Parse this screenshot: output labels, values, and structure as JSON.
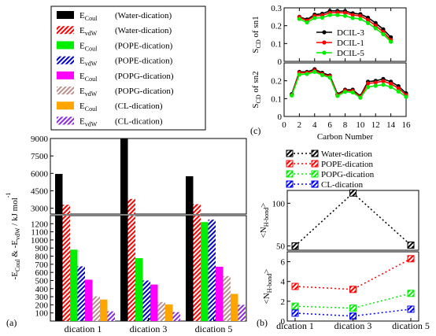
{
  "panel_labels": {
    "a": "(a)",
    "b": "(b)",
    "c": "(c)"
  },
  "legend_a": [
    {
      "sym": "E",
      "sub": "Coul",
      "desc": "(Water-dication)",
      "color": "#000000",
      "pattern": "solid"
    },
    {
      "sym": "E",
      "sub": "vdW",
      "desc": "(Water-dication)",
      "color": "#ff0000",
      "pattern": "hatch"
    },
    {
      "sym": "E",
      "sub": "Coul",
      "desc": "(POPE-dication)",
      "color": "#00ee00",
      "pattern": "solid"
    },
    {
      "sym": "E",
      "sub": "vdW",
      "desc": "(POPE-dication)",
      "color": "#0000cc",
      "pattern": "hatch"
    },
    {
      "sym": "E",
      "sub": "Coul",
      "desc": "(POPG-dication)",
      "color": "#ff00ff",
      "pattern": "solid"
    },
    {
      "sym": "E",
      "sub": "vdW",
      "desc": "(POPG-dication)",
      "color": "#bc8f8f",
      "pattern": "hatch"
    },
    {
      "sym": "E",
      "sub": "Coul",
      "desc": "(CL-dication)",
      "color": "#ffa500",
      "pattern": "solid"
    },
    {
      "sym": "E",
      "sub": "vdW",
      "desc": "(CL-dication)",
      "color": "#8a2be2",
      "pattern": "hatch"
    }
  ],
  "legend_b": [
    "Water-dication",
    "POPE-dication",
    "POPG-dication",
    "CL-dication"
  ],
  "legend_c": [
    "DCIL-3",
    "DCIL-1",
    "DCIL-5"
  ],
  "chart_data": [
    {
      "panel": "a",
      "type": "bar",
      "ylabel": "-E_Coul & -E_vdW / kJ mol^-1",
      "categories": [
        "dication 1",
        "dication 3",
        "dication 5"
      ],
      "broken_axis": {
        "upper": {
          "ylim": [
            2500,
            9000
          ],
          "ticks": [
            3000,
            4500,
            6000,
            7500,
            9000
          ]
        },
        "lower": {
          "ylim": [
            0,
            1300
          ],
          "ticks": [
            0,
            100,
            200,
            300,
            400,
            500,
            600,
            700,
            800,
            900,
            1000,
            1100,
            1200
          ]
        }
      },
      "series": [
        {
          "name": "E_Coul (Water-dication)",
          "color": "#000000",
          "pattern": "solid",
          "values": [
            5950,
            9000,
            5750
          ]
        },
        {
          "name": "E_vdW (Water-dication)",
          "color": "#ff0000",
          "pattern": "hatch",
          "values": [
            3300,
            3800,
            3350
          ]
        },
        {
          "name": "E_Coul (POPE-dication)",
          "color": "#00ee00",
          "pattern": "solid",
          "values": [
            880,
            775,
            1220
          ]
        },
        {
          "name": "E_vdW (POPE-dication)",
          "color": "#0000cc",
          "pattern": "hatch",
          "values": [
            675,
            500,
            1250
          ]
        },
        {
          "name": "E_Coul (POPG-dication)",
          "color": "#ff00ff",
          "pattern": "solid",
          "values": [
            510,
            450,
            670
          ]
        },
        {
          "name": "E_vdW (POPG-dication)",
          "color": "#bc8f8f",
          "pattern": "hatch",
          "values": [
            305,
            235,
            555
          ]
        },
        {
          "name": "E_Coul (CL-dication)",
          "color": "#ffa500",
          "pattern": "solid",
          "values": [
            265,
            205,
            335
          ]
        },
        {
          "name": "E_vdW (CL-dication)",
          "color": "#8a2be2",
          "pattern": "hatch",
          "values": [
            120,
            110,
            200
          ]
        }
      ]
    },
    {
      "panel": "b",
      "type": "line",
      "categories": [
        "dication 1",
        "dication 3",
        "dication 5"
      ],
      "subplots": [
        {
          "ylabel": "<N_H-bond>",
          "ylim": [
            45,
            115
          ],
          "ticks": [
            50,
            100
          ],
          "series": [
            {
              "name": "Water-dication",
              "color": "#000000",
              "values": [
                50,
                112,
                51
              ]
            }
          ]
        },
        {
          "ylabel": "<N_H-bond>",
          "ylim": [
            0,
            7
          ],
          "ticks": [
            0,
            2,
            4,
            6
          ],
          "series": [
            {
              "name": "POPE-dication",
              "color": "#ff0000",
              "values": [
                3.5,
                3.2,
                6.3
              ]
            },
            {
              "name": "POPG-dication",
              "color": "#00ee00",
              "values": [
                1.5,
                1.3,
                2.8
              ]
            },
            {
              "name": "CL-dication",
              "color": "#0000ff",
              "values": [
                0.8,
                0.5,
                1.2
              ]
            }
          ]
        }
      ]
    },
    {
      "panel": "c",
      "type": "line",
      "xlabel": "Carbon Number",
      "x": [
        1,
        2,
        3,
        4,
        5,
        6,
        7,
        8,
        9,
        10,
        11,
        12,
        13,
        14,
        15,
        16
      ],
      "xticks": [
        0,
        2,
        4,
        6,
        8,
        10,
        12,
        14,
        16
      ],
      "subplots": [
        {
          "ylabel": "S_CD of sn1",
          "ylim": [
            0,
            0.3
          ],
          "ticks": [
            0,
            0.1,
            0.2,
            0.3
          ],
          "x": [
            2,
            3,
            4,
            5,
            6,
            7,
            8,
            9,
            10,
            11,
            12,
            13,
            14
          ],
          "series": [
            {
              "name": "DCIL-3",
              "color": "#000000",
              "values": [
                0.25,
                0.235,
                0.262,
                0.267,
                0.283,
                0.283,
                0.282,
                0.27,
                0.265,
                0.245,
                0.215,
                0.18,
                0.135
              ]
            },
            {
              "name": "DCIL-1",
              "color": "#ff0000",
              "values": [
                0.248,
                0.228,
                0.255,
                0.258,
                0.272,
                0.274,
                0.272,
                0.26,
                0.255,
                0.232,
                0.2,
                0.165,
                0.12
              ]
            },
            {
              "name": "DCIL-5",
              "color": "#00ee00",
              "values": [
                0.238,
                0.218,
                0.243,
                0.245,
                0.26,
                0.26,
                0.255,
                0.243,
                0.238,
                0.215,
                0.185,
                0.152,
                0.11
              ]
            }
          ]
        },
        {
          "ylabel": "S_CD of sn2",
          "ylim": [
            0,
            0.3
          ],
          "ticks": [
            0,
            0.1,
            0.2,
            0.3
          ],
          "x": [
            1,
            2,
            3,
            4,
            5,
            6,
            7,
            8,
            9,
            10,
            11,
            12,
            13,
            14,
            15,
            16
          ],
          "series": [
            {
              "name": "DCIL-3",
              "color": "#000000",
              "values": [
                0.125,
                0.25,
                0.25,
                0.265,
                0.245,
                0.23,
                0.125,
                0.15,
                0.15,
                0.115,
                0.195,
                0.2,
                0.21,
                0.195,
                0.17,
                0.13
              ]
            },
            {
              "name": "DCIL-1",
              "color": "#ff0000",
              "values": [
                0.12,
                0.245,
                0.245,
                0.258,
                0.238,
                0.225,
                0.12,
                0.145,
                0.143,
                0.11,
                0.185,
                0.19,
                0.198,
                0.183,
                0.158,
                0.12
              ]
            },
            {
              "name": "DCIL-5",
              "color": "#00ee00",
              "values": [
                0.118,
                0.235,
                0.238,
                0.25,
                0.232,
                0.218,
                0.115,
                0.138,
                0.135,
                0.105,
                0.165,
                0.172,
                0.178,
                0.165,
                0.14,
                0.11
              ]
            }
          ]
        }
      ]
    }
  ]
}
